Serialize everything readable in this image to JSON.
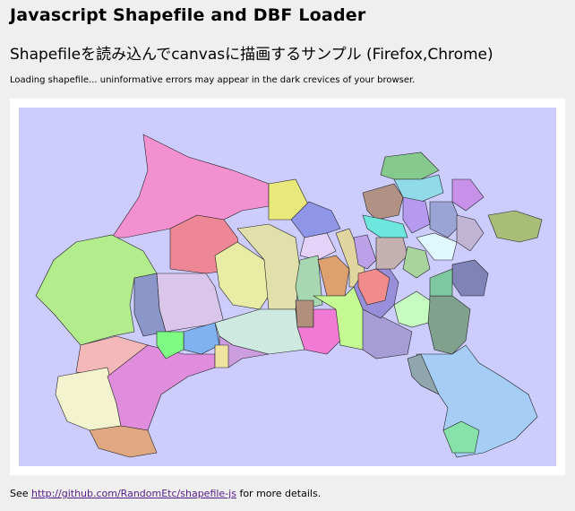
{
  "header": {
    "title": "Javascript Shapefile and DBF Loader",
    "subtitle": "Shapefileを読み込んでcanvasに描画するサンプル (Firefox,Chrome)",
    "status": "Loading shapefile... uninformative errors may appear in the dark crevices of your browser."
  },
  "map": {
    "background": "#ccccff",
    "stroke": "#222222",
    "region_colors": [
      "#f391d0",
      "#b3ec8c",
      "#f5b8b8",
      "#f3f3cf",
      "#e08ddd",
      "#e0a880",
      "#ed8796",
      "#d9c6ea",
      "#8a97c8",
      "#e9eca4",
      "#e2e0aa",
      "#e9e87a",
      "#8f96e8",
      "#e5d2f8",
      "#a8d8b2",
      "#dda06f",
      "#e2d6a0",
      "#b08f7c",
      "#f27bd6",
      "#c4fa91",
      "#cde9e0",
      "#7fb2ee",
      "#7dfb82",
      "#cc9ddf",
      "#f0e3a0",
      "#a79dd6",
      "#988ed9",
      "#f28c8c",
      "#86c98d",
      "#91dbe8",
      "#b19184",
      "#b59af0",
      "#9aa5d6",
      "#c791ea",
      "#a8bd77",
      "#6de6dd",
      "#e0f8ff",
      "#c5b1b1",
      "#a9d49e",
      "#7f83b8",
      "#7fa18e",
      "#7ec8a0",
      "#a5cdf5",
      "#8fa6ad",
      "#c6fcc0",
      "#86e2a8",
      "#bca0e8",
      "#c0b3d4"
    ]
  },
  "footer": {
    "prefix": "See ",
    "link": "http://github.com/RandomEtc/shapefile-js",
    "suffix": " for more details."
  }
}
